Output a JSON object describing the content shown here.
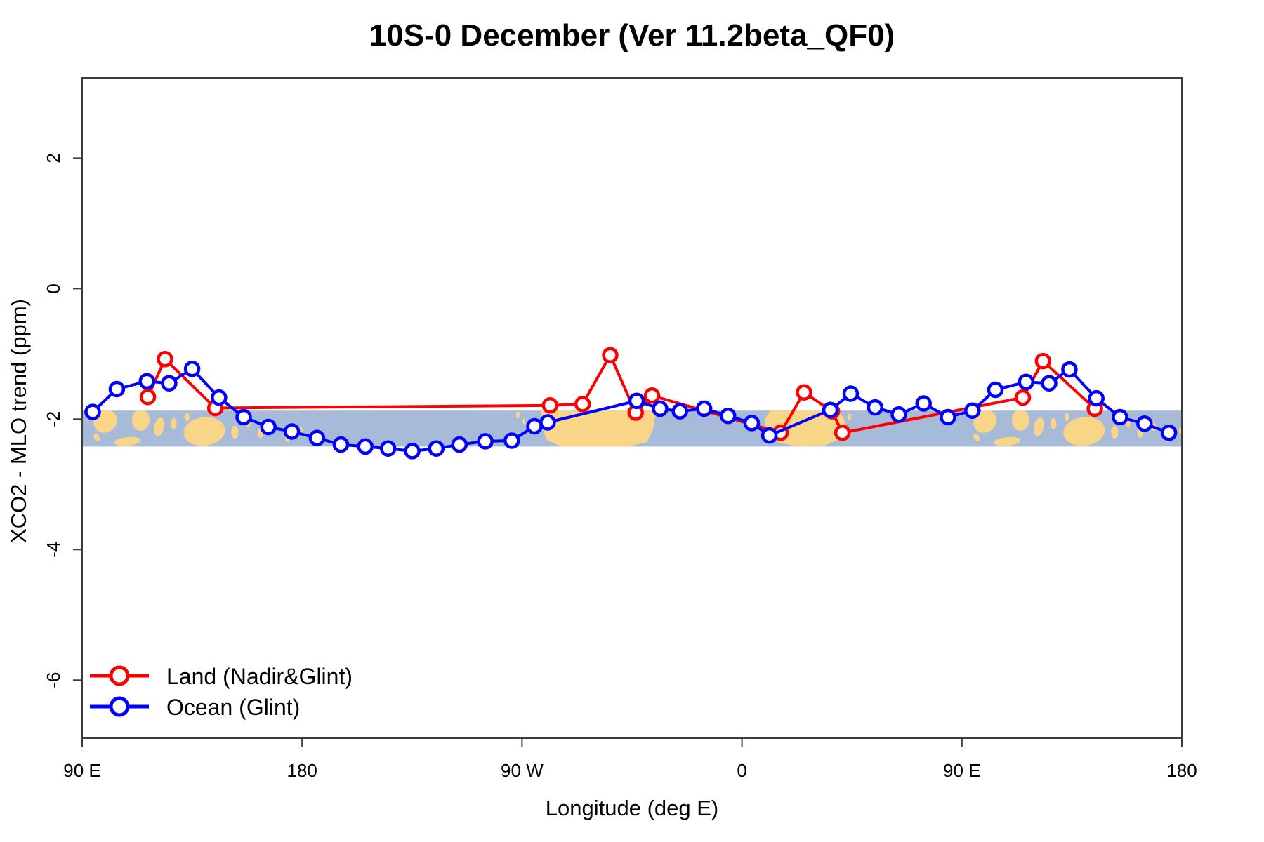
{
  "title": "10S-0 December (Ver 11.2beta_QF0)",
  "axes": {
    "x_label": "Longitude (deg E)",
    "y_label": "XCO2 - MLO trend (ppm)"
  },
  "legend": {
    "position": "bottom-left",
    "items": [
      {
        "label": "Land (Nadir&Glint)",
        "color": "#ff0000"
      },
      {
        "label": "Ocean (Glint)",
        "color": "#0000ff"
      }
    ]
  },
  "colors": {
    "land_series": "#ff0000",
    "ocean_series": "#0000ff",
    "band_ocean": "#a7bad7",
    "band_land": "#f8d587",
    "axis": "#3c3c3c",
    "marker_fill": "#ffffff"
  },
  "chart_data": {
    "type": "line",
    "title": "10S-0 December (Ver 11.2beta_QF0)",
    "xlabel": "Longitude (deg E)",
    "ylabel": "XCO2 - MLO trend (ppm)",
    "xlim": [
      90,
      540
    ],
    "ylim": [
      -6.89,
      3.23
    ],
    "grid": false,
    "x_ticks": [
      {
        "lon": 90,
        "label": "90 E"
      },
      {
        "lon": 180,
        "label": "180"
      },
      {
        "lon": 270,
        "label": "90 W"
      },
      {
        "lon": 360,
        "label": "0"
      },
      {
        "lon": 450,
        "label": "90 E"
      },
      {
        "lon": 540,
        "label": "180"
      }
    ],
    "y_ticks": [
      {
        "v": 2,
        "label": "2"
      },
      {
        "v": 0,
        "label": "0"
      },
      {
        "v": -2,
        "label": "-2"
      },
      {
        "v": -4,
        "label": "-4"
      },
      {
        "v": -6,
        "label": "-6"
      }
    ],
    "series": [
      {
        "name": "Land (Nadir&Glint)",
        "color": "#ff0000",
        "points": [
          [
            116.9,
            -1.66
          ],
          [
            123.9,
            -1.08
          ],
          [
            144.5,
            -1.83
          ],
          [
            281.5,
            -1.79
          ],
          [
            294.8,
            -1.77
          ],
          [
            306.1,
            -1.02
          ],
          [
            316.5,
            -1.9
          ],
          [
            323.2,
            -1.64
          ],
          [
            375.8,
            -2.21
          ],
          [
            385.4,
            -1.59
          ],
          [
            396.8,
            -1.88
          ],
          [
            401.1,
            -2.21
          ],
          [
            474.9,
            -1.67
          ],
          [
            483.2,
            -1.11
          ],
          [
            504.4,
            -1.84
          ]
        ]
      },
      {
        "name": "Ocean (Glint)",
        "color": "#0000ff",
        "points": [
          [
            94.3,
            -1.89
          ],
          [
            104.2,
            -1.54
          ],
          [
            116.5,
            -1.42
          ],
          [
            125.6,
            -1.45
          ],
          [
            135.0,
            -1.23
          ],
          [
            146.0,
            -1.67
          ],
          [
            156.1,
            -1.97
          ],
          [
            166.2,
            -2.12
          ],
          [
            175.8,
            -2.19
          ],
          [
            186.1,
            -2.29
          ],
          [
            195.9,
            -2.39
          ],
          [
            205.9,
            -2.42
          ],
          [
            215.2,
            -2.45
          ],
          [
            225.1,
            -2.49
          ],
          [
            234.9,
            -2.45
          ],
          [
            244.4,
            -2.39
          ],
          [
            255.0,
            -2.34
          ],
          [
            265.8,
            -2.33
          ],
          [
            275.1,
            -2.11
          ],
          [
            280.5,
            -2.05
          ],
          [
            316.9,
            -1.72
          ],
          [
            326.5,
            -1.84
          ],
          [
            334.6,
            -1.88
          ],
          [
            344.5,
            -1.84
          ],
          [
            354.3,
            -1.95
          ],
          [
            364.0,
            -2.06
          ],
          [
            371.2,
            -2.25
          ],
          [
            396.2,
            -1.86
          ],
          [
            404.5,
            -1.61
          ],
          [
            414.5,
            -1.82
          ],
          [
            424.2,
            -1.93
          ],
          [
            434.3,
            -1.76
          ],
          [
            444.3,
            -1.97
          ],
          [
            454.3,
            -1.87
          ],
          [
            463.7,
            -1.55
          ],
          [
            476.3,
            -1.43
          ],
          [
            485.7,
            -1.45
          ],
          [
            494.0,
            -1.24
          ],
          [
            505.0,
            -1.68
          ],
          [
            514.7,
            -1.97
          ],
          [
            524.7,
            -2.07
          ],
          [
            534.7,
            -2.21
          ]
        ]
      }
    ],
    "map_band": {
      "description": "world map strip for latitude band 10S-0",
      "value_top": -1.87,
      "value_bottom": -2.42,
      "ocean_color": "#a7bad7",
      "land_color": "#f8d587",
      "ellipses_wrapped": [
        [
          99.5,
          0.3,
          5.0,
          0.3,
          -38
        ],
        [
          96.0,
          0.75,
          1.1,
          0.12,
          -30
        ],
        [
          108.5,
          0.86,
          5.5,
          0.12,
          -6
        ],
        [
          114.0,
          0.26,
          3.6,
          0.3,
          0
        ],
        [
          121.5,
          0.45,
          2.0,
          0.26,
          12
        ],
        [
          127.5,
          0.36,
          1.2,
          0.16,
          0
        ],
        [
          133.0,
          0.18,
          0.9,
          0.12,
          0
        ],
        [
          140.0,
          0.58,
          8.5,
          0.4,
          -7
        ],
        [
          152.5,
          0.6,
          1.5,
          0.18,
          0
        ],
        [
          158.0,
          0.32,
          1.0,
          0.14,
          0
        ],
        [
          163.0,
          0.62,
          1.2,
          0.14,
          0
        ],
        [
          168.5,
          0.45,
          0.9,
          0.12,
          0
        ],
        [
          174.0,
          0.78,
          0.9,
          0.1,
          0
        ],
        [
          179.5,
          0.55,
          0.7,
          0.1,
          0
        ]
      ],
      "ellipses_single": [
        [
          268.3,
          0.12,
          0.8,
          0.1,
          0
        ],
        [
          270.8,
          0.3,
          0.6,
          0.08,
          0
        ],
        [
          404.0,
          0.18,
          0.8,
          0.1,
          0
        ]
      ],
      "polygons": [
        {
          "name": "south-america",
          "pts": [
            [
              278,
              0
            ],
            [
              325,
              0
            ],
            [
              323.5,
              0.55
            ],
            [
              321,
              0.88
            ],
            [
              313,
              1
            ],
            [
              286,
              1
            ],
            [
              280,
              0.82
            ],
            [
              278,
              0.4
            ]
          ]
        },
        {
          "name": "africa",
          "pts": [
            [
              371.5,
              0
            ],
            [
              399.5,
              0
            ],
            [
              401.5,
              0.2
            ],
            [
              403,
              0.45
            ],
            [
              400,
              0.8
            ],
            [
              394,
              0.97
            ],
            [
              383,
              1
            ],
            [
              374.5,
              0.88
            ],
            [
              370,
              0.55
            ],
            [
              369.3,
              0.25
            ]
          ]
        }
      ]
    }
  }
}
